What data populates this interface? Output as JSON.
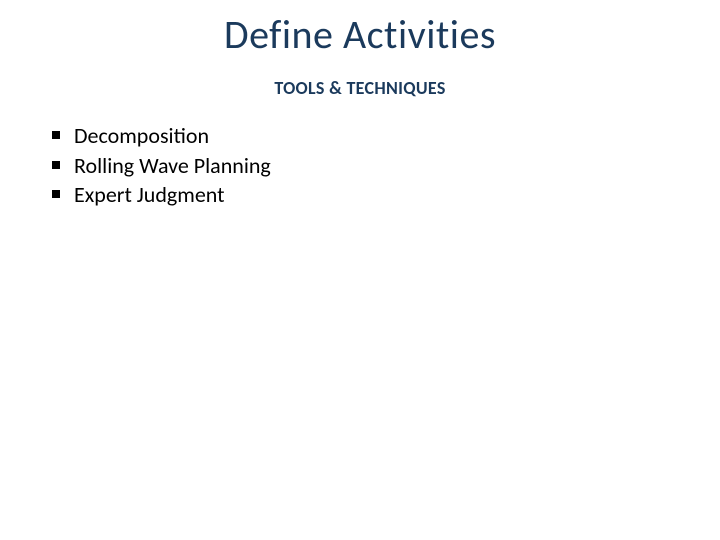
{
  "slide": {
    "title": "Define Activities",
    "subtitle": "TOOLS & TECHNIQUES",
    "bullets": [
      "Decomposition",
      "Rolling Wave Planning",
      "Expert Judgment"
    ],
    "style": {
      "title_color": "#1b3a5c",
      "title_fontsize": 40,
      "subtitle_color": "#1b3a5c",
      "subtitle_fontsize": 18,
      "bullet_color": "#000000",
      "bullet_fontsize": 22,
      "bullet_marker": "square",
      "background_color": "#ffffff"
    }
  }
}
